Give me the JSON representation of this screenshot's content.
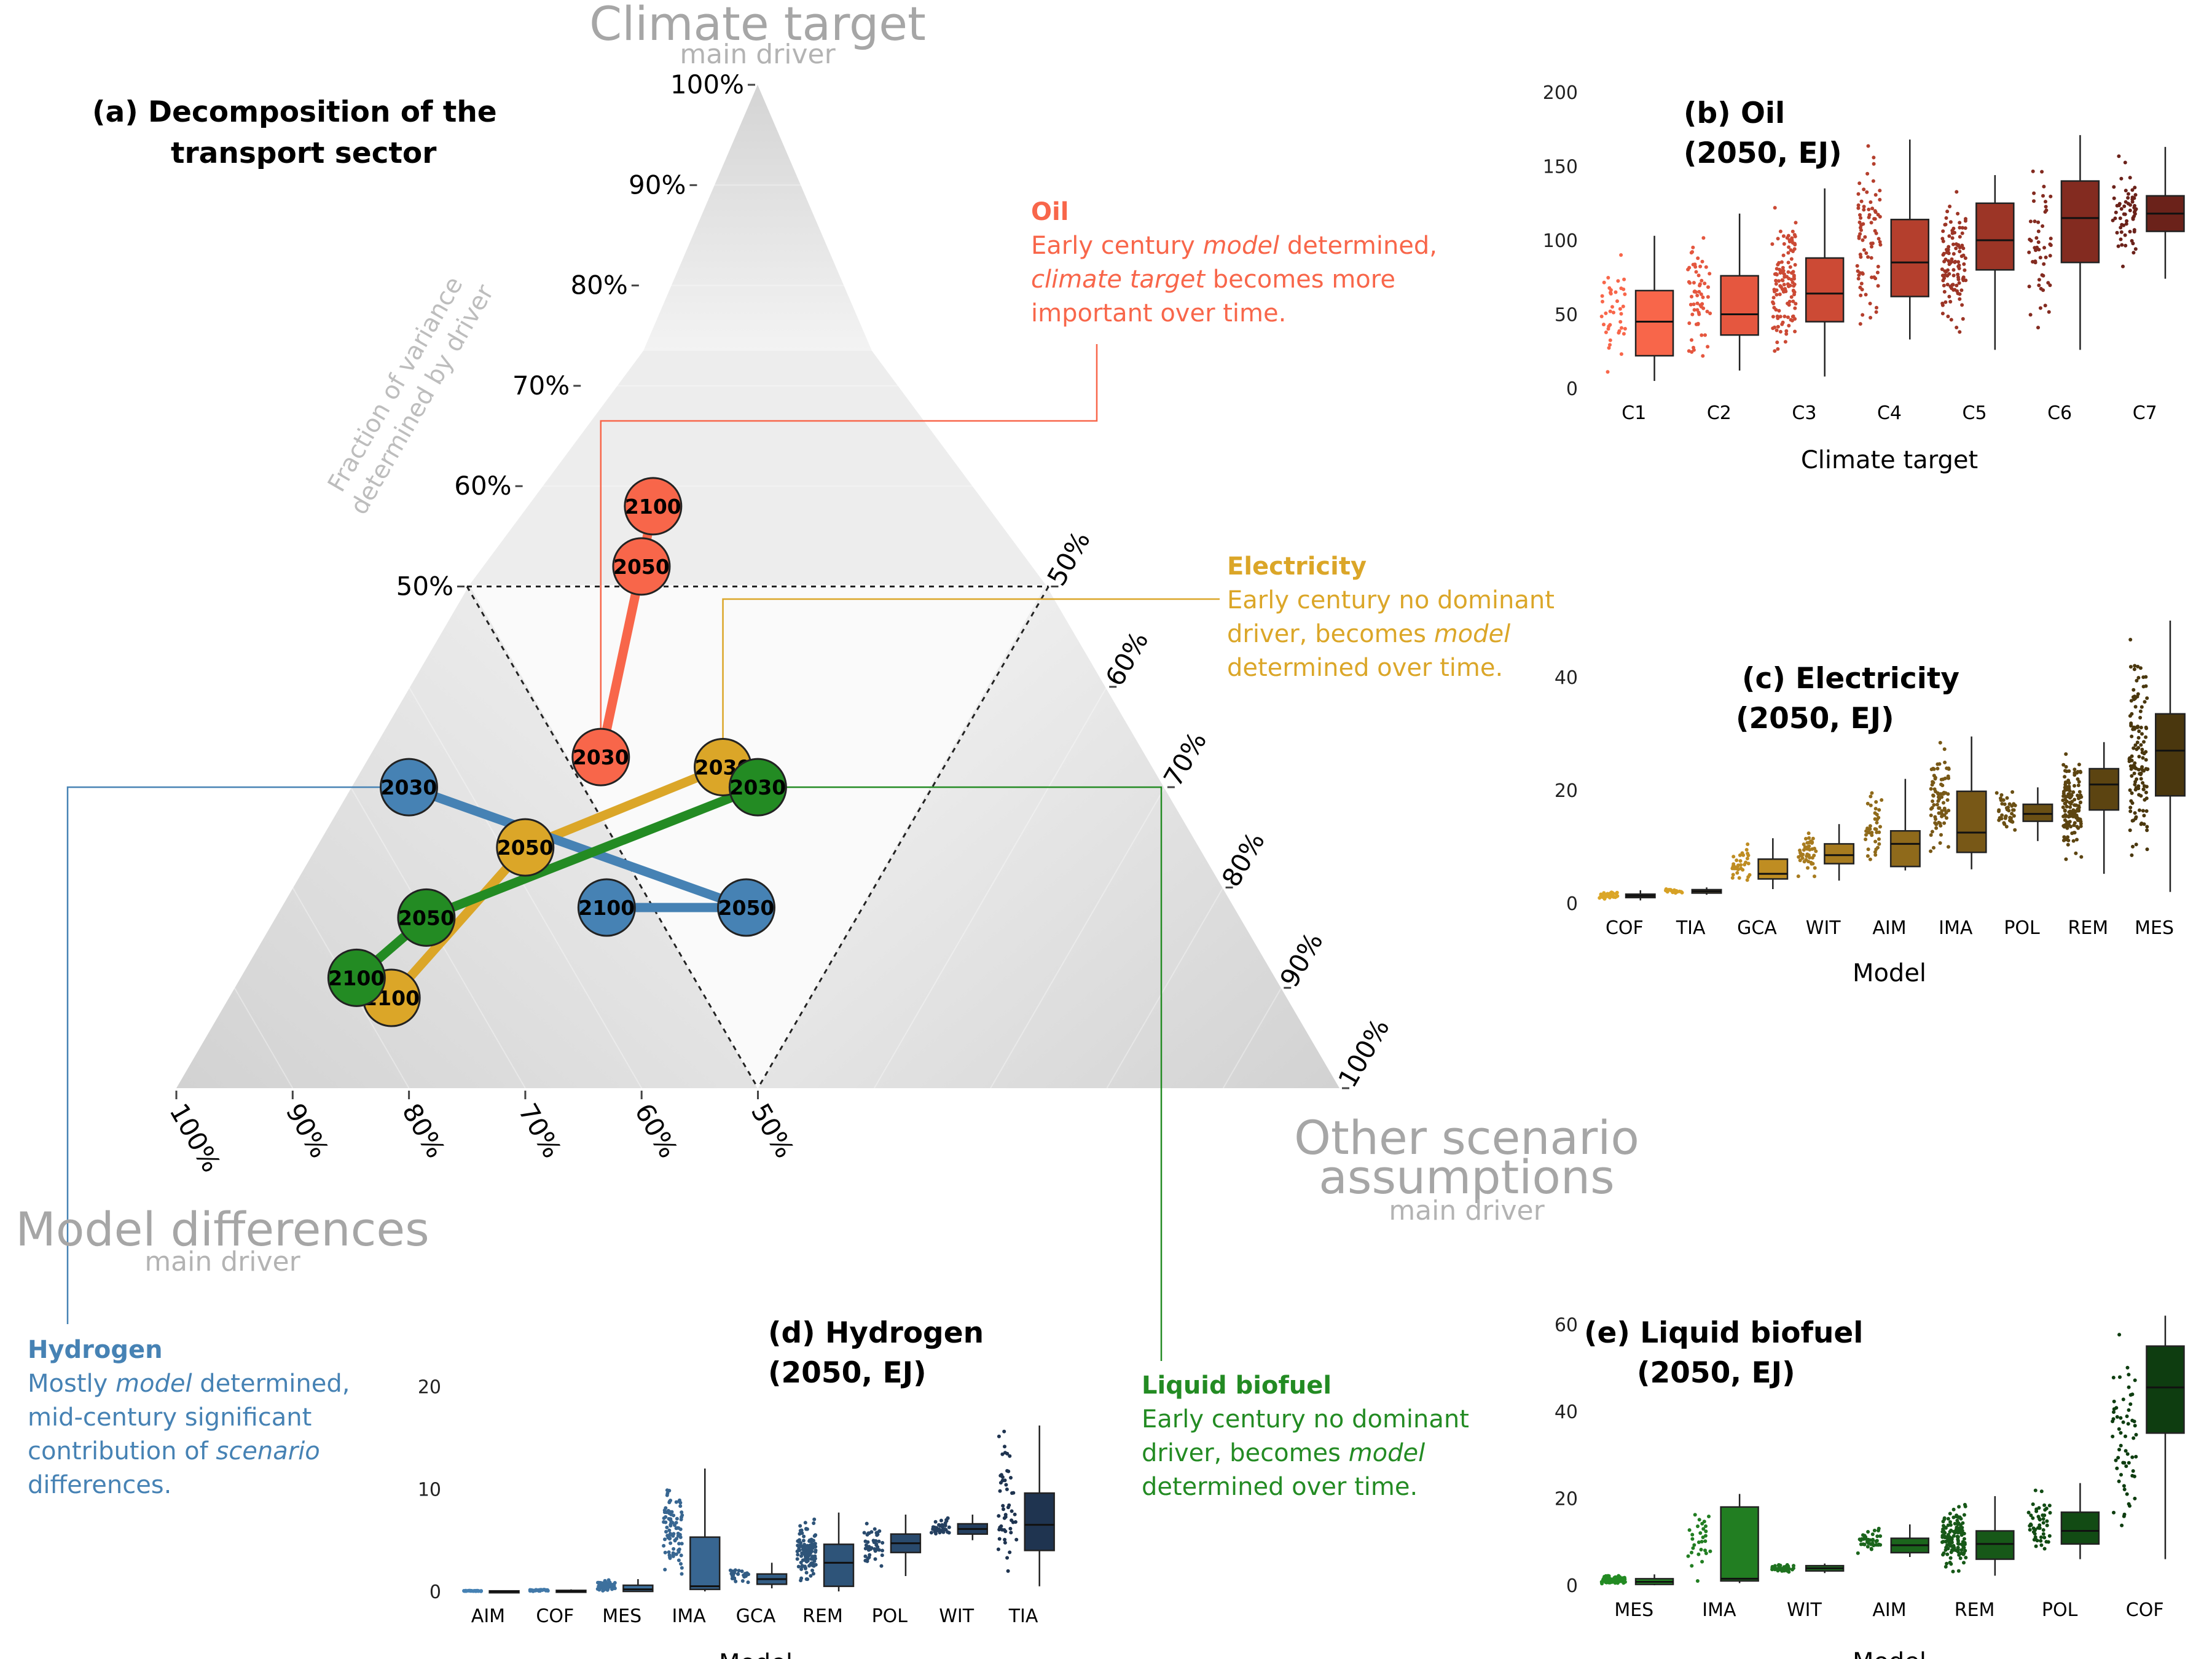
{
  "ternary": {
    "title_line1": "(a) Decomposition of the",
    "title_line2": "transport sector",
    "corner_top": {
      "label": "Climate target",
      "sub": "main driver"
    },
    "corner_left": {
      "label": "Model differences",
      "sub": "main driver"
    },
    "corner_right": {
      "label_line1": "Other scenario",
      "label_line2": "assumptions",
      "sub": "main driver"
    },
    "axis_caption_line1": "Fraction of variance",
    "axis_caption_line2": "determined by driver",
    "left_ticks": [
      "100%",
      "90%",
      "80%",
      "70%",
      "60%",
      "50%"
    ],
    "right_ticks": [
      "50%",
      "60%",
      "70%",
      "80%",
      "90%",
      "100%"
    ],
    "bottom_ticks": [
      "100%",
      "90%",
      "80%",
      "70%",
      "60%",
      "50%"
    ],
    "colors": {
      "oil": "#f8664a",
      "electricity": "#dba628",
      "hydrogen": "#4682b4",
      "biofuel": "#238b23"
    },
    "series": [
      {
        "key": "oil",
        "points": [
          {
            "year": "2030",
            "climate": 0.33,
            "model": 0.47,
            "other": 0.2
          },
          {
            "year": "2050",
            "climate": 0.52,
            "model": 0.34,
            "other": 0.14
          },
          {
            "year": "2100",
            "climate": 0.58,
            "model": 0.3,
            "other": 0.12
          }
        ]
      },
      {
        "key": "electricity",
        "points": [
          {
            "year": "2030",
            "climate": 0.32,
            "model": 0.37,
            "other": 0.31
          },
          {
            "year": "2050",
            "climate": 0.24,
            "model": 0.58,
            "other": 0.18
          },
          {
            "year": "2100",
            "climate": 0.09,
            "model": 0.77,
            "other": 0.14
          }
        ]
      },
      {
        "key": "hydrogen",
        "points": [
          {
            "year": "2030",
            "climate": 0.3,
            "model": 0.65,
            "other": 0.05
          },
          {
            "year": "2050",
            "climate": 0.18,
            "model": 0.42,
            "other": 0.4
          },
          {
            "year": "2100",
            "climate": 0.18,
            "model": 0.54,
            "other": 0.28
          }
        ]
      },
      {
        "key": "biofuel",
        "points": [
          {
            "year": "2030",
            "climate": 0.3,
            "model": 0.35,
            "other": 0.35
          },
          {
            "year": "2050",
            "climate": 0.17,
            "model": 0.7,
            "other": 0.13
          },
          {
            "year": "2100",
            "climate": 0.11,
            "model": 0.79,
            "other": 0.1
          }
        ]
      }
    ]
  },
  "annotations": {
    "oil": {
      "title": "Oil",
      "l1": "Early century ",
      "l1i": "model",
      "l1b": " determined,",
      "l2i": "climate target",
      "l2b": " becomes more",
      "l3": "important over time."
    },
    "electricity": {
      "title": "Electricity",
      "l1": "Early century no dominant",
      "l2": "driver, becomes ",
      "l2i": "model",
      "l3": "determined over time."
    },
    "hydrogen": {
      "title": "Hydrogen",
      "l1": "Mostly ",
      "l1i": "model",
      "l1b": " determined,",
      "l2": "mid-century significant",
      "l3": "contribution of ",
      "l3i": "scenario",
      "l4": "differences."
    },
    "biofuel": {
      "title": "Liquid biofuel",
      "l1": "Early century no dominant",
      "l2": "driver, becomes ",
      "l2i": "model",
      "l3": "determined over time."
    }
  },
  "chart_data": [
    {
      "type": "box",
      "id": "oil",
      "title_line1": "(b) Oil",
      "title_line2": "(2050, EJ)",
      "xlabel": "Climate target",
      "ylim": [
        0,
        200
      ],
      "yticks": [
        0,
        50,
        100,
        150,
        200
      ],
      "categories": [
        "C1",
        "C2",
        "C3",
        "C4",
        "C5",
        "C6",
        "C7"
      ],
      "boxes": [
        {
          "q1": 22,
          "med": 45,
          "q3": 66,
          "lo": 5,
          "hi": 103,
          "n": 40
        },
        {
          "q1": 36,
          "med": 50,
          "q3": 76,
          "lo": 12,
          "hi": 118,
          "n": 60
        },
        {
          "q1": 45,
          "med": 64,
          "q3": 88,
          "lo": 8,
          "hi": 135,
          "n": 120
        },
        {
          "q1": 62,
          "med": 85,
          "q3": 114,
          "lo": 33,
          "hi": 168,
          "n": 80
        },
        {
          "q1": 80,
          "med": 100,
          "q3": 125,
          "lo": 26,
          "hi": 144,
          "n": 110
        },
        {
          "q1": 85,
          "med": 115,
          "q3": 140,
          "lo": 26,
          "hi": 171,
          "n": 50
        },
        {
          "q1": 106,
          "med": 118,
          "q3": 130,
          "lo": 74,
          "hi": 163,
          "n": 60
        }
      ],
      "colors": [
        "#f8664a",
        "#e5573f",
        "#cc4a35",
        "#b43f2d",
        "#9c3526",
        "#832b20",
        "#6b221a"
      ]
    },
    {
      "type": "box",
      "id": "electricity",
      "title_line1": "(c) Electricity",
      "title_line2": "(2050, EJ)",
      "xlabel": "Model",
      "ylim": [
        0,
        50
      ],
      "yticks": [
        0,
        20,
        40
      ],
      "categories": [
        "COF",
        "TIA",
        "GCA",
        "WIT",
        "AIM",
        "IMA",
        "POL",
        "REM",
        "MES"
      ],
      "boxes": [
        {
          "q1": 1.0,
          "med": 1.3,
          "q3": 1.6,
          "lo": 0.5,
          "hi": 2.3,
          "n": 30
        },
        {
          "q1": 1.8,
          "med": 2.1,
          "q3": 2.4,
          "lo": 1.5,
          "hi": 2.8,
          "n": 20
        },
        {
          "q1": 4.3,
          "med": 5.2,
          "q3": 7.8,
          "lo": 2.5,
          "hi": 11.5,
          "n": 35
        },
        {
          "q1": 7.0,
          "med": 8.5,
          "q3": 10.5,
          "lo": 4.0,
          "hi": 14.0,
          "n": 45
        },
        {
          "q1": 6.5,
          "med": 10.5,
          "q3": 12.8,
          "lo": 5.8,
          "hi": 22.0,
          "n": 40
        },
        {
          "q1": 9.0,
          "med": 12.5,
          "q3": 19.8,
          "lo": 6.0,
          "hi": 29.5,
          "n": 80
        },
        {
          "q1": 14.5,
          "med": 15.8,
          "q3": 17.5,
          "lo": 11.0,
          "hi": 20.5,
          "n": 40
        },
        {
          "q1": 16.5,
          "med": 21.0,
          "q3": 23.8,
          "lo": 5.2,
          "hi": 28.5,
          "n": 140
        },
        {
          "q1": 19.0,
          "med": 27.0,
          "q3": 33.5,
          "lo": 2.0,
          "hi": 50.0,
          "n": 130
        }
      ],
      "colors": [
        "#dba628",
        "#d6a125",
        "#bf8d22",
        "#a77b1f",
        "#8f6a1b",
        "#785817",
        "#6a4f14",
        "#5c4411",
        "#4a370e"
      ]
    },
    {
      "type": "box",
      "id": "hydrogen",
      "title_line1": "(d) Hydrogen",
      "title_line2": "(2050, EJ)",
      "xlabel": "Model",
      "ylim": [
        0,
        27
      ],
      "yticks": [
        0,
        10,
        20
      ],
      "categories": [
        "AIM",
        "COF",
        "MES",
        "IMA",
        "GCA",
        "REM",
        "POL",
        "WIT",
        "TIA"
      ],
      "boxes": [
        {
          "q1": 0,
          "med": 0,
          "q3": 0.05,
          "lo": 0,
          "hi": 0.1,
          "n": 40
        },
        {
          "q1": 0,
          "med": 0,
          "q3": 0.1,
          "lo": 0,
          "hi": 0.2,
          "n": 30
        },
        {
          "q1": 0,
          "med": 0.2,
          "q3": 0.6,
          "lo": 0,
          "hi": 1.2,
          "n": 60
        },
        {
          "q1": 0.2,
          "med": 0.5,
          "q3": 5.3,
          "lo": 0,
          "hi": 12.0,
          "n": 90
        },
        {
          "q1": 0.7,
          "med": 1.2,
          "q3": 1.7,
          "lo": 0.3,
          "hi": 2.8,
          "n": 25
        },
        {
          "q1": 0.5,
          "med": 2.8,
          "q3": 4.6,
          "lo": 0,
          "hi": 7.7,
          "n": 120
        },
        {
          "q1": 3.8,
          "med": 4.7,
          "q3": 5.6,
          "lo": 1.5,
          "hi": 7.5,
          "n": 45
        },
        {
          "q1": 5.6,
          "med": 6.1,
          "q3": 6.6,
          "lo": 5.0,
          "hi": 7.5,
          "n": 40
        },
        {
          "q1": 4.0,
          "med": 6.5,
          "q3": 9.6,
          "lo": 0.5,
          "hi": 16.2,
          "n": 50
        }
      ],
      "colors": [
        "#4682b4",
        "#4279a9",
        "#3d709d",
        "#386691",
        "#335d85",
        "#2e5479",
        "#294a6d",
        "#243f5f",
        "#1f3450"
      ]
    },
    {
      "type": "box",
      "id": "biofuel",
      "title_line1": "(e) Liquid biofuel",
      "title_line2": "(2050, EJ)",
      "xlabel": "Model",
      "ylim": [
        0,
        65
      ],
      "yticks": [
        0,
        20,
        40,
        60
      ],
      "categories": [
        "MES",
        "IMA",
        "WIT",
        "AIM",
        "REM",
        "POL",
        "COF"
      ],
      "boxes": [
        {
          "q1": 0.2,
          "med": 0.8,
          "q3": 1.5,
          "lo": 0,
          "hi": 2.5,
          "n": 90
        },
        {
          "q1": 1.0,
          "med": 1.5,
          "q3": 18.0,
          "lo": 0.5,
          "hi": 21.0,
          "n": 30
        },
        {
          "q1": 3.3,
          "med": 3.9,
          "q3": 4.5,
          "lo": 2.8,
          "hi": 5.0,
          "n": 45
        },
        {
          "q1": 7.5,
          "med": 9.2,
          "q3": 10.8,
          "lo": 6.5,
          "hi": 14.0,
          "n": 40
        },
        {
          "q1": 6.0,
          "med": 9.5,
          "q3": 12.5,
          "lo": 2.2,
          "hi": 20.5,
          "n": 140
        },
        {
          "q1": 9.5,
          "med": 12.5,
          "q3": 16.8,
          "lo": 6.0,
          "hi": 23.5,
          "n": 50
        },
        {
          "q1": 35.0,
          "med": 45.5,
          "q3": 55.0,
          "lo": 6.0,
          "hi": 62.0,
          "n": 60
        }
      ],
      "colors": [
        "#238b23",
        "#227e22",
        "#1f7220",
        "#1b651c",
        "#175818",
        "#124b14",
        "#0e3d10"
      ]
    }
  ]
}
